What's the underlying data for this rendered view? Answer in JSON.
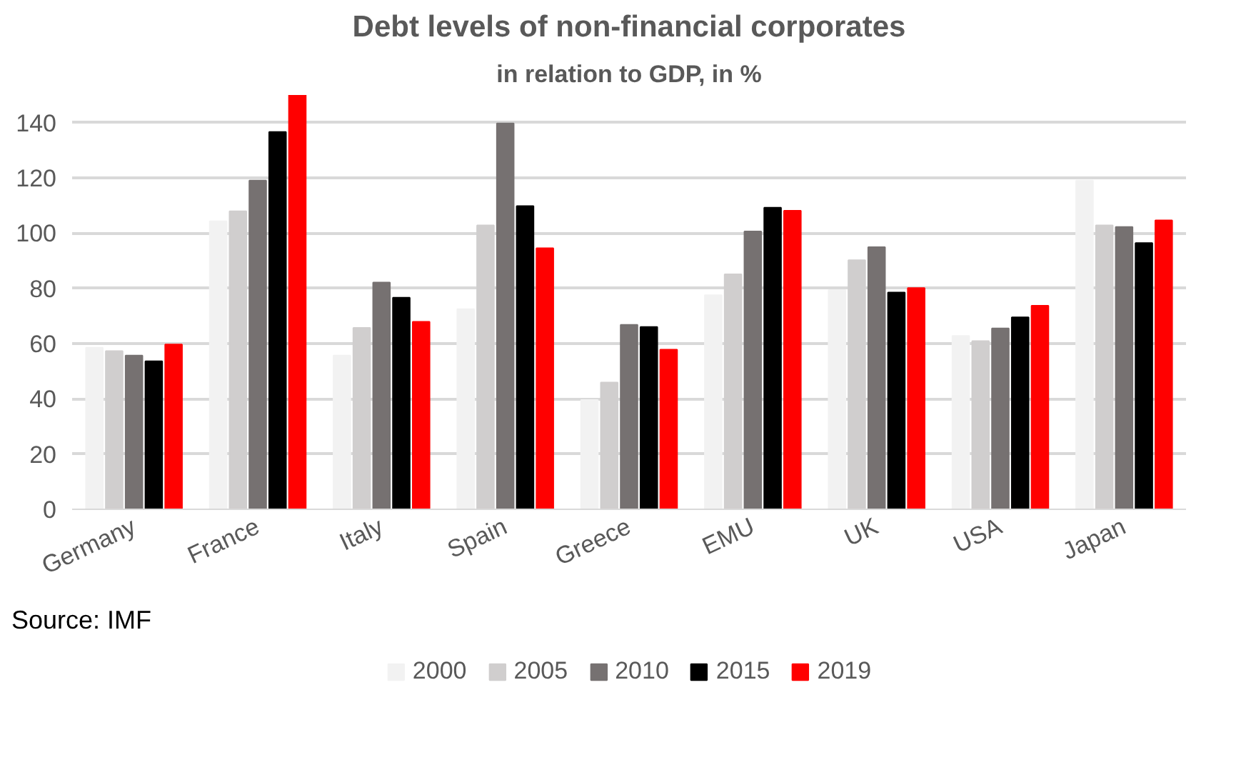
{
  "chart_data": {
    "type": "bar",
    "title": "Debt levels of non-financial corporates",
    "subtitle": "in relation to GDP, in %",
    "categories": [
      "Germany",
      "France",
      "Italy",
      "Spain",
      "Greece",
      "EMU",
      "UK",
      "USA",
      "Japan"
    ],
    "series": [
      {
        "name": "2000",
        "color": "#f2f2f2",
        "values": [
          58.5,
          104.3,
          55.7,
          72.5,
          39.6,
          77.5,
          79.4,
          62.8,
          119
        ]
      },
      {
        "name": "2005",
        "color": "#d0cece",
        "values": [
          57.3,
          107.9,
          65.7,
          102.8,
          45.9,
          85.1,
          90.2,
          60.9,
          102.8
        ]
      },
      {
        "name": "2010",
        "color": "#767171",
        "values": [
          55.7,
          119,
          82.1,
          139.7,
          66.8,
          100.6,
          94.9,
          65.5,
          102.2
        ]
      },
      {
        "name": "2015",
        "color": "#000000",
        "values": [
          53.6,
          136.6,
          76.6,
          109.8,
          66.0,
          109.2,
          78.5,
          69.5,
          96.4
        ]
      },
      {
        "name": "2019",
        "color": "#ff0000",
        "values": [
          59.7,
          150,
          67.9,
          94.5,
          57.8,
          108.1,
          80.1,
          73.7,
          104.6
        ]
      }
    ],
    "ylim": [
      0,
      150
    ],
    "yticks": [
      0,
      20,
      40,
      60,
      80,
      100,
      120,
      140
    ],
    "grid": "y",
    "legend": "bottom",
    "annotations": [
      "Source: IMF"
    ]
  }
}
